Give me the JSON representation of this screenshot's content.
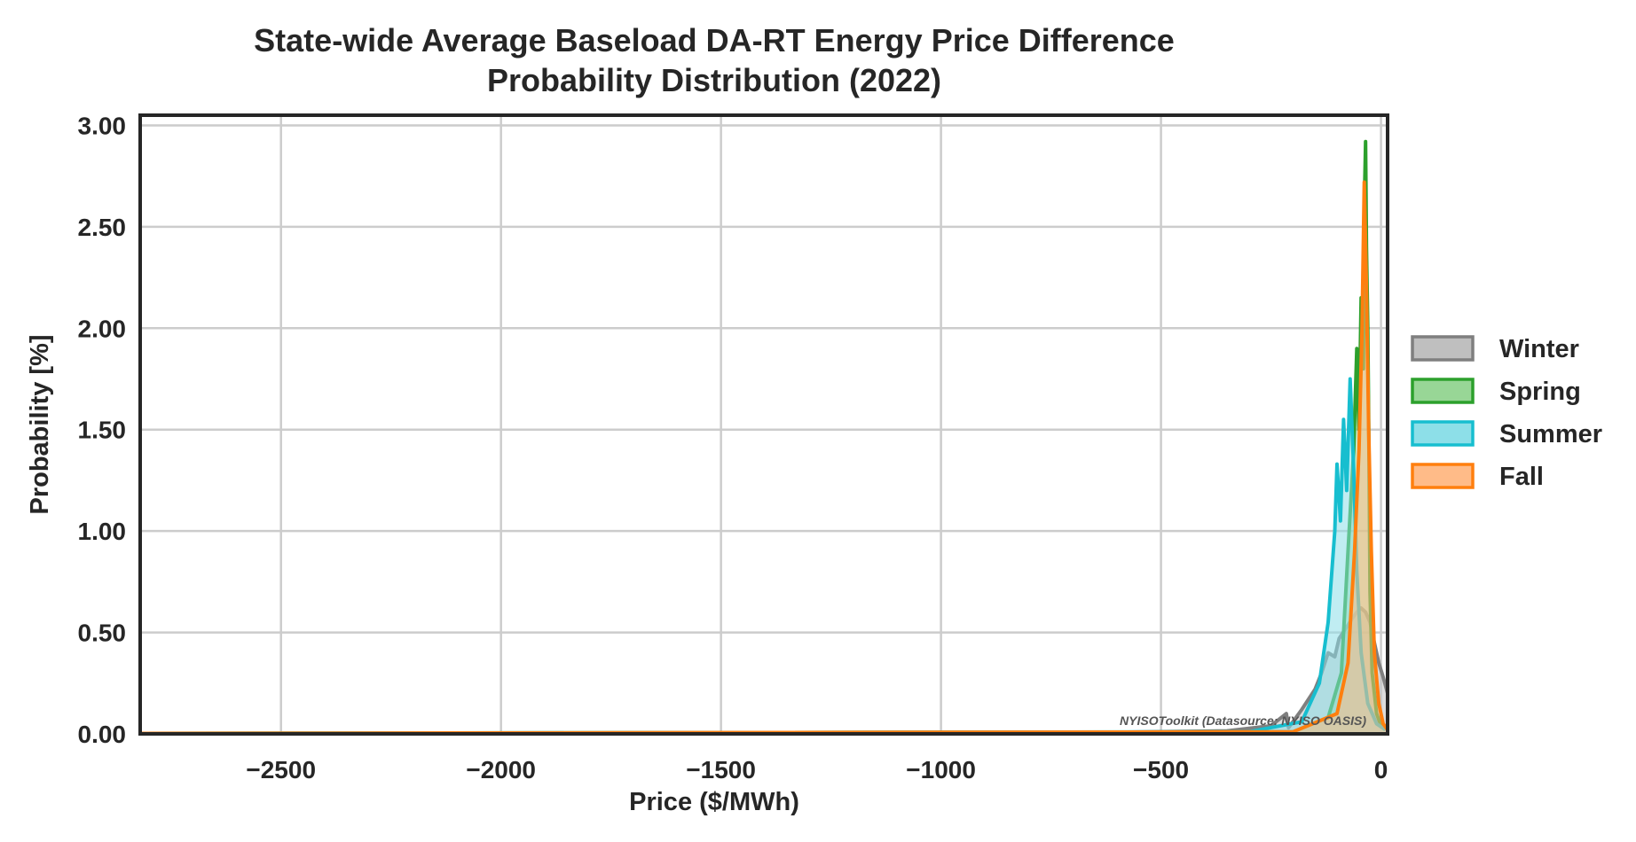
{
  "chart_data": {
    "type": "area",
    "title_line1": "State-wide Average Baseload DA-RT Energy Price Difference",
    "title_line2": "Probability Distribution (2022)",
    "xlabel": "Price ($/MWh)",
    "ylabel": "Probability [%]",
    "xlim": [
      -2820,
      15
    ],
    "ylim": [
      0,
      3.05
    ],
    "xticks": [
      -2500,
      -2000,
      -1500,
      -1000,
      -500,
      0
    ],
    "xtick_labels": [
      "−2500",
      "−2000",
      "−1500",
      "−1000",
      "−500",
      "0"
    ],
    "yticks": [
      0,
      0.5,
      1.0,
      1.5,
      2.0,
      2.5,
      3.0
    ],
    "ytick_labels": [
      "0.00",
      "0.50",
      "1.00",
      "1.50",
      "2.00",
      "2.50",
      "3.00"
    ],
    "grid": true,
    "legend_position": "center-right",
    "watermark": "NYISOToolkit (Datasource: NYISO OASIS)",
    "series": [
      {
        "name": "Winter",
        "color": "#7f7f7f",
        "fill": "#bfbfbf",
        "points": [
          [
            -2820,
            0.002
          ],
          [
            -1000,
            0.004
          ],
          [
            -600,
            0.008
          ],
          [
            -350,
            0.015
          ],
          [
            -250,
            0.04
          ],
          [
            -215,
            0.1
          ],
          [
            -210,
            0.03
          ],
          [
            -180,
            0.12
          ],
          [
            -150,
            0.22
          ],
          [
            -135,
            0.3
          ],
          [
            -120,
            0.4
          ],
          [
            -105,
            0.38
          ],
          [
            -95,
            0.47
          ],
          [
            -80,
            0.52
          ],
          [
            -65,
            0.57
          ],
          [
            -55,
            0.6
          ],
          [
            -45,
            0.62
          ],
          [
            -35,
            0.6
          ],
          [
            -25,
            0.55
          ],
          [
            -15,
            0.45
          ],
          [
            -5,
            0.35
          ],
          [
            5,
            0.28
          ],
          [
            15,
            0.2
          ]
        ]
      },
      {
        "name": "Spring",
        "color": "#2ca02c",
        "fill": "#98d696",
        "points": [
          [
            -2820,
            0.002
          ],
          [
            -200,
            0.01
          ],
          [
            -120,
            0.08
          ],
          [
            -90,
            0.3
          ],
          [
            -75,
            0.9
          ],
          [
            -62,
            1.4
          ],
          [
            -55,
            1.9
          ],
          [
            -50,
            1.5
          ],
          [
            -45,
            2.15
          ],
          [
            -40,
            1.8
          ],
          [
            -37,
            2.7
          ],
          [
            -35,
            2.92
          ],
          [
            -33,
            2.4
          ],
          [
            -30,
            2.0
          ],
          [
            -27,
            1.3
          ],
          [
            -25,
            0.7
          ],
          [
            -20,
            0.3
          ],
          [
            -10,
            0.1
          ],
          [
            0,
            0.04
          ],
          [
            10,
            0.02
          ]
        ]
      },
      {
        "name": "Summer",
        "color": "#17becf",
        "fill": "#8ddfe8",
        "points": [
          [
            -2820,
            0.002
          ],
          [
            -300,
            0.01
          ],
          [
            -180,
            0.06
          ],
          [
            -140,
            0.25
          ],
          [
            -120,
            0.55
          ],
          [
            -105,
            1.0
          ],
          [
            -100,
            1.33
          ],
          [
            -92,
            1.05
          ],
          [
            -85,
            1.55
          ],
          [
            -78,
            1.2
          ],
          [
            -70,
            1.75
          ],
          [
            -62,
            1.3
          ],
          [
            -55,
            0.8
          ],
          [
            -45,
            0.4
          ],
          [
            -30,
            0.15
          ],
          [
            -10,
            0.05
          ],
          [
            10,
            0.02
          ]
        ]
      },
      {
        "name": "Fall",
        "color": "#ff7f0e",
        "fill": "#ffbb88",
        "points": [
          [
            -2820,
            0.002
          ],
          [
            -200,
            0.01
          ],
          [
            -100,
            0.1
          ],
          [
            -75,
            0.35
          ],
          [
            -60,
            0.9
          ],
          [
            -50,
            1.4
          ],
          [
            -43,
            2.0
          ],
          [
            -38,
            2.72
          ],
          [
            -33,
            2.2
          ],
          [
            -28,
            1.5
          ],
          [
            -22,
            0.9
          ],
          [
            -15,
            0.4
          ],
          [
            -5,
            0.15
          ],
          [
            5,
            0.05
          ],
          [
            15,
            0.02
          ]
        ]
      }
    ]
  }
}
